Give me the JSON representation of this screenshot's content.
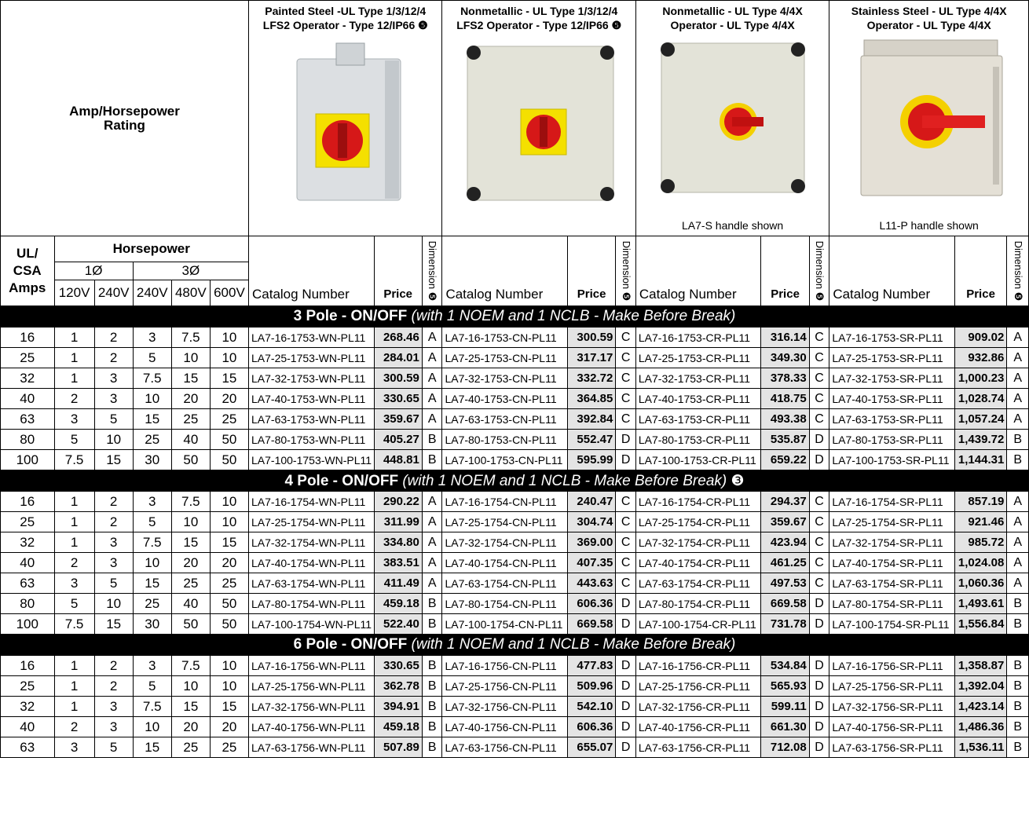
{
  "header": {
    "amp_hp_rating": "Amp/Horsepower Rating",
    "products": [
      {
        "title": "Painted Steel -UL Type 1/3/12/4\nLFS2 Operator - Type 12/IP66 ❺",
        "caption": ""
      },
      {
        "title": "Nonmetallic - UL Type 1/3/12/4\nLFS2 Operator - Type 12/IP66 ❺",
        "caption": ""
      },
      {
        "title": "Nonmetallic - UL Type 4/4X\nOperator - UL Type 4/4X",
        "caption": "LA7-S handle shown"
      },
      {
        "title": "Stainless Steel - UL Type 4/4X\nOperator - UL Type 4/4X",
        "caption": "L11-P handle shown"
      }
    ]
  },
  "columns": {
    "ul_csa_amps": "UL/ CSA Amps",
    "horsepower": "Horsepower",
    "phase1": "1Ø",
    "phase3": "3Ø",
    "v120": "120V",
    "v240a": "240V",
    "v240b": "240V",
    "v480": "480V",
    "v600": "600V",
    "catalog_number": "Catalog Number",
    "price": "Price",
    "dimension": "Dimension ❺"
  },
  "sections": [
    {
      "title_bold": "3 Pole - ON/OFF",
      "title_italic": "(with 1 NOEM and 1 NCLB - Make Before Break)",
      "note": "",
      "rows": [
        {
          "amps": "16",
          "hp": [
            "1",
            "2",
            "3",
            "7.5",
            "10"
          ],
          "p": [
            [
              "LA7-16-1753-WN-PL11",
              "268.46",
              "A"
            ],
            [
              "LA7-16-1753-CN-PL11",
              "300.59",
              "C"
            ],
            [
              "LA7-16-1753-CR-PL11",
              "316.14",
              "C"
            ],
            [
              "LA7-16-1753-SR-PL11",
              "909.02",
              "A"
            ]
          ]
        },
        {
          "amps": "25",
          "hp": [
            "1",
            "2",
            "5",
            "10",
            "10"
          ],
          "p": [
            [
              "LA7-25-1753-WN-PL11",
              "284.01",
              "A"
            ],
            [
              "LA7-25-1753-CN-PL11",
              "317.17",
              "C"
            ],
            [
              "LA7-25-1753-CR-PL11",
              "349.30",
              "C"
            ],
            [
              "LA7-25-1753-SR-PL11",
              "932.86",
              "A"
            ]
          ]
        },
        {
          "amps": "32",
          "hp": [
            "1",
            "3",
            "7.5",
            "15",
            "15"
          ],
          "p": [
            [
              "LA7-32-1753-WN-PL11",
              "300.59",
              "A"
            ],
            [
              "LA7-32-1753-CN-PL11",
              "332.72",
              "C"
            ],
            [
              "LA7-32-1753-CR-PL11",
              "378.33",
              "C"
            ],
            [
              "LA7-32-1753-SR-PL11",
              "1,000.23",
              "A"
            ]
          ]
        },
        {
          "amps": "40",
          "hp": [
            "2",
            "3",
            "10",
            "20",
            "20"
          ],
          "p": [
            [
              "LA7-40-1753-WN-PL11",
              "330.65",
              "A"
            ],
            [
              "LA7-40-1753-CN-PL11",
              "364.85",
              "C"
            ],
            [
              "LA7-40-1753-CR-PL11",
              "418.75",
              "C"
            ],
            [
              "LA7-40-1753-SR-PL11",
              "1,028.74",
              "A"
            ]
          ]
        },
        {
          "amps": "63",
          "hp": [
            "3",
            "5",
            "15",
            "25",
            "25"
          ],
          "p": [
            [
              "LA7-63-1753-WN-PL11",
              "359.67",
              "A"
            ],
            [
              "LA7-63-1753-CN-PL11",
              "392.84",
              "C"
            ],
            [
              "LA7-63-1753-CR-PL11",
              "493.38",
              "C"
            ],
            [
              "LA7-63-1753-SR-PL11",
              "1,057.24",
              "A"
            ]
          ]
        },
        {
          "amps": "80",
          "hp": [
            "5",
            "10",
            "25",
            "40",
            "50"
          ],
          "p": [
            [
              "LA7-80-1753-WN-PL11",
              "405.27",
              "B"
            ],
            [
              "LA7-80-1753-CN-PL11",
              "552.47",
              "D"
            ],
            [
              "LA7-80-1753-CR-PL11",
              "535.87",
              "D"
            ],
            [
              "LA7-80-1753-SR-PL11",
              "1,439.72",
              "B"
            ]
          ]
        },
        {
          "amps": "100",
          "hp": [
            "7.5",
            "15",
            "30",
            "50",
            "50"
          ],
          "p": [
            [
              "LA7-100-1753-WN-PL11",
              "448.81",
              "B"
            ],
            [
              "LA7-100-1753-CN-PL11",
              "595.99",
              "D"
            ],
            [
              "LA7-100-1753-CR-PL11",
              "659.22",
              "D"
            ],
            [
              "LA7-100-1753-SR-PL11",
              "1,144.31",
              "B"
            ]
          ]
        }
      ]
    },
    {
      "title_bold": "4 Pole - ON/OFF",
      "title_italic": "(with 1 NOEM and 1 NCLB - Make Before Break)",
      "note": "❸",
      "rows": [
        {
          "amps": "16",
          "hp": [
            "1",
            "2",
            "3",
            "7.5",
            "10"
          ],
          "p": [
            [
              "LA7-16-1754-WN-PL11",
              "290.22",
              "A"
            ],
            [
              "LA7-16-1754-CN-PL11",
              "240.47",
              "C"
            ],
            [
              "LA7-16-1754-CR-PL11",
              "294.37",
              "C"
            ],
            [
              "LA7-16-1754-SR-PL11",
              "857.19",
              "A"
            ]
          ]
        },
        {
          "amps": "25",
          "hp": [
            "1",
            "2",
            "5",
            "10",
            "10"
          ],
          "p": [
            [
              "LA7-25-1754-WN-PL11",
              "311.99",
              "A"
            ],
            [
              "LA7-25-1754-CN-PL11",
              "304.74",
              "C"
            ],
            [
              "LA7-25-1754-CR-PL11",
              "359.67",
              "C"
            ],
            [
              "LA7-25-1754-SR-PL11",
              "921.46",
              "A"
            ]
          ]
        },
        {
          "amps": "32",
          "hp": [
            "1",
            "3",
            "7.5",
            "15",
            "15"
          ],
          "p": [
            [
              "LA7-32-1754-WN-PL11",
              "334.80",
              "A"
            ],
            [
              "LA7-32-1754-CN-PL11",
              "369.00",
              "C"
            ],
            [
              "LA7-32-1754-CR-PL11",
              "423.94",
              "C"
            ],
            [
              "LA7-32-1754-SR-PL11",
              "985.72",
              "A"
            ]
          ]
        },
        {
          "amps": "40",
          "hp": [
            "2",
            "3",
            "10",
            "20",
            "20"
          ],
          "p": [
            [
              "LA7-40-1754-WN-PL11",
              "383.51",
              "A"
            ],
            [
              "LA7-40-1754-CN-PL11",
              "407.35",
              "C"
            ],
            [
              "LA7-40-1754-CR-PL11",
              "461.25",
              "C"
            ],
            [
              "LA7-40-1754-SR-PL11",
              "1,024.08",
              "A"
            ]
          ]
        },
        {
          "amps": "63",
          "hp": [
            "3",
            "5",
            "15",
            "25",
            "25"
          ],
          "p": [
            [
              "LA7-63-1754-WN-PL11",
              "411.49",
              "A"
            ],
            [
              "LA7-63-1754-CN-PL11",
              "443.63",
              "C"
            ],
            [
              "LA7-63-1754-CR-PL11",
              "497.53",
              "C"
            ],
            [
              "LA7-63-1754-SR-PL11",
              "1,060.36",
              "A"
            ]
          ]
        },
        {
          "amps": "80",
          "hp": [
            "5",
            "10",
            "25",
            "40",
            "50"
          ],
          "p": [
            [
              "LA7-80-1754-WN-PL11",
              "459.18",
              "B"
            ],
            [
              "LA7-80-1754-CN-PL11",
              "606.36",
              "D"
            ],
            [
              "LA7-80-1754-CR-PL11",
              "669.58",
              "D"
            ],
            [
              "LA7-80-1754-SR-PL11",
              "1,493.61",
              "B"
            ]
          ]
        },
        {
          "amps": "100",
          "hp": [
            "7.5",
            "15",
            "30",
            "50",
            "50"
          ],
          "p": [
            [
              "LA7-100-1754-WN-PL11",
              "522.40",
              "B"
            ],
            [
              "LA7-100-1754-CN-PL11",
              "669.58",
              "D"
            ],
            [
              "LA7-100-1754-CR-PL11",
              "731.78",
              "D"
            ],
            [
              "LA7-100-1754-SR-PL11",
              "1,556.84",
              "B"
            ]
          ]
        }
      ]
    },
    {
      "title_bold": "6 Pole - ON/OFF",
      "title_italic": "(with 1 NOEM and 1 NCLB - Make Before Break)",
      "note": "",
      "rows": [
        {
          "amps": "16",
          "hp": [
            "1",
            "2",
            "3",
            "7.5",
            "10"
          ],
          "p": [
            [
              "LA7-16-1756-WN-PL11",
              "330.65",
              "B"
            ],
            [
              "LA7-16-1756-CN-PL11",
              "477.83",
              "D"
            ],
            [
              "LA7-16-1756-CR-PL11",
              "534.84",
              "D"
            ],
            [
              "LA7-16-1756-SR-PL11",
              "1,358.87",
              "B"
            ]
          ]
        },
        {
          "amps": "25",
          "hp": [
            "1",
            "2",
            "5",
            "10",
            "10"
          ],
          "p": [
            [
              "LA7-25-1756-WN-PL11",
              "362.78",
              "B"
            ],
            [
              "LA7-25-1756-CN-PL11",
              "509.96",
              "D"
            ],
            [
              "LA7-25-1756-CR-PL11",
              "565.93",
              "D"
            ],
            [
              "LA7-25-1756-SR-PL11",
              "1,392.04",
              "B"
            ]
          ]
        },
        {
          "amps": "32",
          "hp": [
            "1",
            "3",
            "7.5",
            "15",
            "15"
          ],
          "p": [
            [
              "LA7-32-1756-WN-PL11",
              "394.91",
              "B"
            ],
            [
              "LA7-32-1756-CN-PL11",
              "542.10",
              "D"
            ],
            [
              "LA7-32-1756-CR-PL11",
              "599.11",
              "D"
            ],
            [
              "LA7-32-1756-SR-PL11",
              "1,423.14",
              "B"
            ]
          ]
        },
        {
          "amps": "40",
          "hp": [
            "2",
            "3",
            "10",
            "20",
            "20"
          ],
          "p": [
            [
              "LA7-40-1756-WN-PL11",
              "459.18",
              "B"
            ],
            [
              "LA7-40-1756-CN-PL11",
              "606.36",
              "D"
            ],
            [
              "LA7-40-1756-CR-PL11",
              "661.30",
              "D"
            ],
            [
              "LA7-40-1756-SR-PL11",
              "1,486.36",
              "B"
            ]
          ]
        },
        {
          "amps": "63",
          "hp": [
            "3",
            "5",
            "15",
            "25",
            "25"
          ],
          "p": [
            [
              "LA7-63-1756-WN-PL11",
              "507.89",
              "B"
            ],
            [
              "LA7-63-1756-CN-PL11",
              "655.07",
              "D"
            ],
            [
              "LA7-63-1756-CR-PL11",
              "712.08",
              "D"
            ],
            [
              "LA7-63-1756-SR-PL11",
              "1,536.11",
              "B"
            ]
          ]
        }
      ]
    }
  ]
}
